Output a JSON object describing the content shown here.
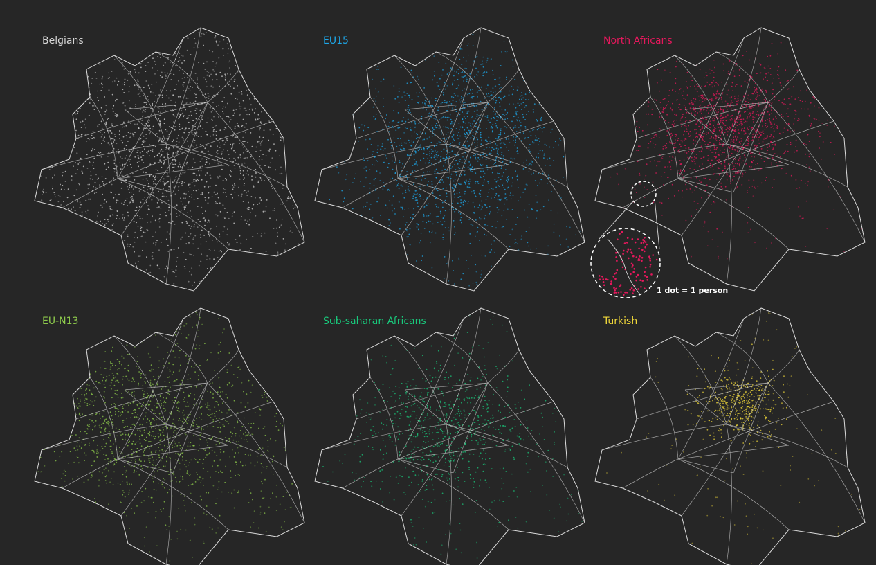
{
  "panels": [
    {
      "title": "Belgians",
      "color": "#d6d6d6"
    },
    {
      "title": "EU15",
      "color": "#1ea7e8"
    },
    {
      "title": "North Africans",
      "color": "#e5185c"
    },
    {
      "title": "EU-N13",
      "color": "#8cc84b"
    },
    {
      "title": "Sub-saharan Africans",
      "color": "#19c97c"
    },
    {
      "title": "Turkish",
      "color": "#f0d83a"
    }
  ],
  "annotation": "1 dot = 1 person"
}
